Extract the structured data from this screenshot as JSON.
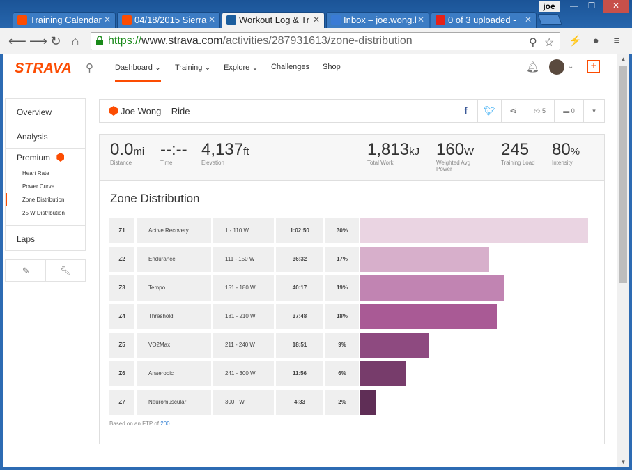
{
  "browser": {
    "tabs": [
      {
        "title": "Training Calendar",
        "icon_color": "#fc4c02"
      },
      {
        "title": "04/18/2015 Sierra",
        "icon_color": "#fc4c02"
      },
      {
        "title": "Workout Log & Tr",
        "icon_color": "#1c5e9e"
      },
      {
        "title": "Inbox – joe.wong.l",
        "icon_color": "#3a7bd5"
      },
      {
        "title": "0 of 3 uploaded -",
        "icon_color": "#e62117"
      }
    ],
    "user": "joe",
    "url_scheme": "https://",
    "url_host": "www.strava.com",
    "url_path": "/activities/287931613/zone-distribution"
  },
  "header": {
    "logo": "STRAVA",
    "nav": [
      {
        "label": "Dashboard"
      },
      {
        "label": "Training"
      },
      {
        "label": "Explore"
      },
      {
        "label": "Challenges"
      },
      {
        "label": "Shop"
      }
    ],
    "add_label": "+"
  },
  "sidebar": {
    "overview": "Overview",
    "analysis": "Analysis",
    "premium": "Premium",
    "premium_items": [
      {
        "label": "Heart Rate"
      },
      {
        "label": "Power Curve"
      },
      {
        "label": "Zone Distribution"
      },
      {
        "label": "25 W Distribution"
      }
    ],
    "laps": "Laps"
  },
  "activity": {
    "title": "Joe Wong – Ride",
    "kudos_count": "5",
    "comment_count": "0"
  },
  "stats": {
    "distance": {
      "value": "0.0",
      "unit": "mi",
      "label": "Distance"
    },
    "time": {
      "value": "--:--",
      "label": "Time"
    },
    "elevation": {
      "value": "4,137",
      "unit": "ft",
      "label": "Elevation"
    },
    "total_work": {
      "value": "1,813",
      "unit": "kJ",
      "label": "Total Work"
    },
    "weighted_power": {
      "value": "160",
      "unit": "W",
      "label_1": "Weighted Avg",
      "label_2": "Power"
    },
    "training_load": {
      "value": "245",
      "label": "Training Load"
    },
    "intensity": {
      "value": "80",
      "unit": "%",
      "label": "Intensity"
    }
  },
  "zones": {
    "title": "Zone Distribution",
    "rows": [
      {
        "zone": "Z1",
        "name": "Active Recovery",
        "range": "1 - 110 W",
        "time": "1:02:50",
        "pct": "30%",
        "share": 30,
        "color": "#ead4e2"
      },
      {
        "zone": "Z2",
        "name": "Endurance",
        "range": "111 - 150 W",
        "time": "36:32",
        "pct": "17%",
        "share": 17,
        "color": "#d7afcb"
      },
      {
        "zone": "Z3",
        "name": "Tempo",
        "range": "151 - 180 W",
        "time": "40:17",
        "pct": "19%",
        "share": 19,
        "color": "#c184b2"
      },
      {
        "zone": "Z4",
        "name": "Threshold",
        "range": "181 - 210 W",
        "time": "37:48",
        "pct": "18%",
        "share": 18,
        "color": "#a95a95"
      },
      {
        "zone": "Z5",
        "name": "VO2Max",
        "range": "211 - 240 W",
        "time": "18:51",
        "pct": "9%",
        "share": 9,
        "color": "#8e4a80"
      },
      {
        "zone": "Z6",
        "name": "Anaerobic",
        "range": "241 - 300 W",
        "time": "11:56",
        "pct": "6%",
        "share": 6,
        "color": "#773c6b"
      },
      {
        "zone": "Z7",
        "name": "Neuromuscular",
        "range": "300+ W",
        "time": "4:33",
        "pct": "2%",
        "share": 2,
        "color": "#5f2e56"
      }
    ],
    "ftp_prefix": "Based on an FTP of",
    "ftp_value": "200",
    "ftp_suffix": "."
  }
}
